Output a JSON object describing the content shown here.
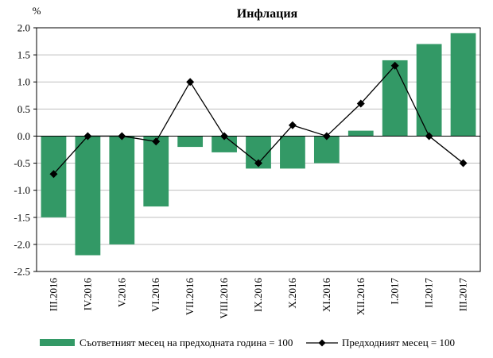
{
  "chart_data": {
    "type": "bar",
    "title": "Инфлация",
    "ylabel": "%",
    "xlabel": "",
    "ylim": [
      -2.5,
      2.0
    ],
    "yticks": [
      "2.0",
      "1.5",
      "1.0",
      "0.5",
      "0.0",
      "-0.5",
      "-1.0",
      "-1.5",
      "-2.0",
      "-2.5"
    ],
    "ytick_values": [
      2.0,
      1.5,
      1.0,
      0.5,
      0.0,
      -0.5,
      -1.0,
      -1.5,
      -2.0,
      -2.5
    ],
    "grid": true,
    "legend_position": "bottom",
    "categories": [
      "III.2016",
      "IV.2016",
      "V.2016",
      "VI.2016",
      "VII.2016",
      "VIII.2016",
      "IX.2016",
      "X.2016",
      "XI.2016",
      "XII.2016",
      "I.2017",
      "II.2017",
      "III.2017"
    ],
    "series": [
      {
        "name": "Съответният месец на предходната година = 100",
        "type": "bar",
        "color": "#339966",
        "values": [
          -1.5,
          -2.2,
          -2.0,
          -1.3,
          -0.2,
          -0.3,
          -0.6,
          -0.6,
          -0.5,
          0.1,
          1.4,
          1.7,
          1.9
        ]
      },
      {
        "name": "Предходният месец = 100",
        "type": "line",
        "marker": "diamond",
        "color": "#000000",
        "values": [
          -0.7,
          0.0,
          0.0,
          -0.1,
          1.0,
          0.0,
          -0.5,
          0.2,
          0.0,
          0.6,
          1.3,
          0.0,
          -0.5
        ]
      }
    ]
  }
}
